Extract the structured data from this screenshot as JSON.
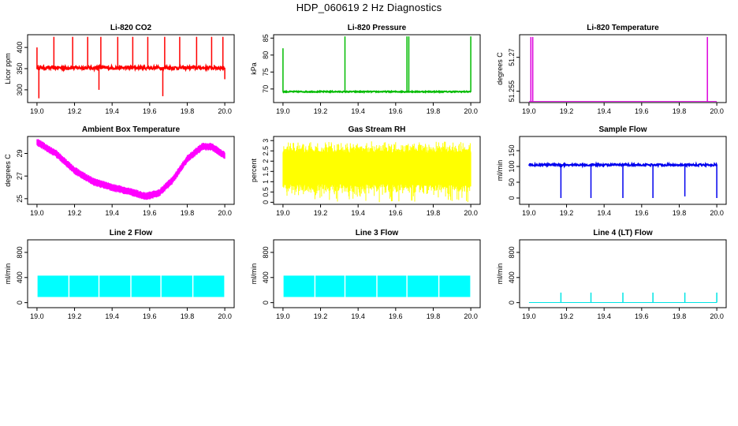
{
  "figure": {
    "title": "HDP_060619  2 Hz Diagnostics"
  },
  "chart_data": [
    {
      "type": "line",
      "title": "Li-820 CO2",
      "xlabel": "",
      "ylabel": "Licor ppm",
      "xlim": [
        18.95,
        20.05
      ],
      "ylim": [
        270,
        430
      ],
      "xticks": [
        "19.0",
        "19.2",
        "19.4",
        "19.6",
        "19.8",
        "20.0"
      ],
      "yticks": [
        300,
        350,
        400
      ],
      "color": "#ff0000",
      "baseline": 352,
      "noise": 4,
      "spikes": [
        {
          "x": 19.09,
          "y": 425
        },
        {
          "x": 19.19,
          "y": 425
        },
        {
          "x": 19.27,
          "y": 425
        },
        {
          "x": 19.34,
          "y": 425
        },
        {
          "x": 19.43,
          "y": 425
        },
        {
          "x": 19.51,
          "y": 425
        },
        {
          "x": 19.59,
          "y": 425
        },
        {
          "x": 19.68,
          "y": 425
        },
        {
          "x": 19.76,
          "y": 425
        },
        {
          "x": 19.85,
          "y": 425
        },
        {
          "x": 19.93,
          "y": 425
        },
        {
          "x": 19.99,
          "y": 425
        },
        {
          "x": 19.0,
          "y": 400
        },
        {
          "x": 19.01,
          "y": 280
        },
        {
          "x": 19.33,
          "y": 300
        },
        {
          "x": 19.67,
          "y": 285
        },
        {
          "x": 20.0,
          "y": 325
        }
      ]
    },
    {
      "type": "line",
      "title": "Li-820 Pressure",
      "xlabel": "",
      "ylabel": "kPa",
      "xlim": [
        18.95,
        20.05
      ],
      "ylim": [
        66,
        86
      ],
      "xticks": [
        "19.0",
        "19.2",
        "19.4",
        "19.6",
        "19.8",
        "20.0"
      ],
      "yticks": [
        70,
        75,
        80,
        85
      ],
      "color": "#00bb00",
      "baseline": 69.2,
      "noise": 0.15,
      "spikes": [
        {
          "x": 19.0,
          "y": 82
        },
        {
          "x": 19.33,
          "y": 85.5
        },
        {
          "x": 19.66,
          "y": 85.5
        },
        {
          "x": 19.67,
          "y": 85.5
        },
        {
          "x": 20.0,
          "y": 85.5
        }
      ]
    },
    {
      "type": "line",
      "title": "Li-820 Temperature",
      "xlabel": "",
      "ylabel": "degrees C",
      "xlim": [
        18.95,
        20.05
      ],
      "ylim": [
        51.25,
        51.28
      ],
      "xticks": [
        "19.0",
        "19.2",
        "19.4",
        "19.6",
        "19.8",
        "20.0"
      ],
      "yticks": [
        51.255,
        51.27
      ],
      "color": "#dd00dd",
      "baseline": 51.2505,
      "noise": 0,
      "spikes": [
        {
          "x": 19.01,
          "y": 51.279
        },
        {
          "x": 19.02,
          "y": 51.279
        },
        {
          "x": 19.95,
          "y": 51.279
        }
      ]
    },
    {
      "type": "line",
      "title": "Ambient Box Temperature",
      "xlabel": "",
      "ylabel": "degrees C",
      "xlim": [
        18.95,
        20.05
      ],
      "ylim": [
        24.5,
        30.5
      ],
      "xticks": [
        "19.0",
        "19.2",
        "19.4",
        "19.6",
        "19.8",
        "20.0"
      ],
      "yticks": [
        25,
        27,
        29
      ],
      "color": "#ff00ff",
      "noise": 0.35,
      "x": [
        19.0,
        19.1,
        19.2,
        19.3,
        19.4,
        19.5,
        19.58,
        19.65,
        19.72,
        19.8,
        19.88,
        19.93,
        20.0
      ],
      "y": [
        30.0,
        29.0,
        27.5,
        26.5,
        26.0,
        25.6,
        25.2,
        25.5,
        26.6,
        28.5,
        29.6,
        29.6,
        28.8
      ]
    },
    {
      "type": "line",
      "title": "Gas Stream RH",
      "xlabel": "",
      "ylabel": "percent",
      "xlim": [
        18.95,
        20.05
      ],
      "ylim": [
        -0.1,
        3.2
      ],
      "xticks": [
        "19.0",
        "19.2",
        "19.4",
        "19.6",
        "19.8",
        "20.0"
      ],
      "yticks": [
        0.0,
        0.5,
        1.0,
        1.5,
        2.0,
        2.5,
        3.0
      ],
      "color": "#ffff00",
      "band": [
        0.4,
        3.0
      ],
      "core": [
        0.9,
        2.4
      ]
    },
    {
      "type": "line",
      "title": "Sample Flow",
      "xlabel": "",
      "ylabel": "ml/min",
      "xlim": [
        18.95,
        20.05
      ],
      "ylim": [
        -20,
        195
      ],
      "xticks": [
        "19.0",
        "19.2",
        "19.4",
        "19.6",
        "19.8",
        "20.0"
      ],
      "yticks": [
        0,
        50,
        100,
        150
      ],
      "color": "#0000ee",
      "baseline": 105,
      "noise": 3,
      "dips": [
        {
          "x": 19.17,
          "y": 0
        },
        {
          "x": 19.33,
          "y": 0
        },
        {
          "x": 19.5,
          "y": 0
        },
        {
          "x": 19.66,
          "y": 0
        },
        {
          "x": 19.83,
          "y": 5
        },
        {
          "x": 20.0,
          "y": 0
        }
      ]
    },
    {
      "type": "area",
      "title": "Line 2 Flow",
      "xlabel": "",
      "ylabel": "ml/min",
      "xlim": [
        18.95,
        20.05
      ],
      "ylim": [
        -80,
        1000
      ],
      "xticks": [
        "19.0",
        "19.2",
        "19.4",
        "19.6",
        "19.8",
        "20.0"
      ],
      "yticks": [
        0,
        400,
        800
      ],
      "color": "#00ffff",
      "band": [
        90,
        430
      ],
      "gaps": [
        19.17,
        19.33,
        19.5,
        19.66,
        19.83
      ]
    },
    {
      "type": "area",
      "title": "Line 3 Flow",
      "xlabel": "",
      "ylabel": "ml/min",
      "xlim": [
        18.95,
        20.05
      ],
      "ylim": [
        -80,
        1000
      ],
      "xticks": [
        "19.0",
        "19.2",
        "19.4",
        "19.6",
        "19.8",
        "20.0"
      ],
      "yticks": [
        0,
        400,
        800
      ],
      "color": "#00ffff",
      "band": [
        90,
        430
      ],
      "gaps": [
        19.17,
        19.33,
        19.5,
        19.66,
        19.83
      ]
    },
    {
      "type": "line",
      "title": "Line 4 (LT) Flow",
      "xlabel": "",
      "ylabel": "ml/min",
      "xlim": [
        18.95,
        20.05
      ],
      "ylim": [
        -80,
        1000
      ],
      "xticks": [
        "19.0",
        "19.2",
        "19.4",
        "19.6",
        "19.8",
        "20.0"
      ],
      "yticks": [
        0,
        400,
        800
      ],
      "color": "#00e5e5",
      "baseline": 2,
      "noise": 0,
      "spikes": [
        {
          "x": 19.17,
          "y": 160
        },
        {
          "x": 19.33,
          "y": 160
        },
        {
          "x": 19.5,
          "y": 160
        },
        {
          "x": 19.66,
          "y": 160
        },
        {
          "x": 19.83,
          "y": 160
        },
        {
          "x": 20.0,
          "y": 160
        }
      ]
    }
  ]
}
